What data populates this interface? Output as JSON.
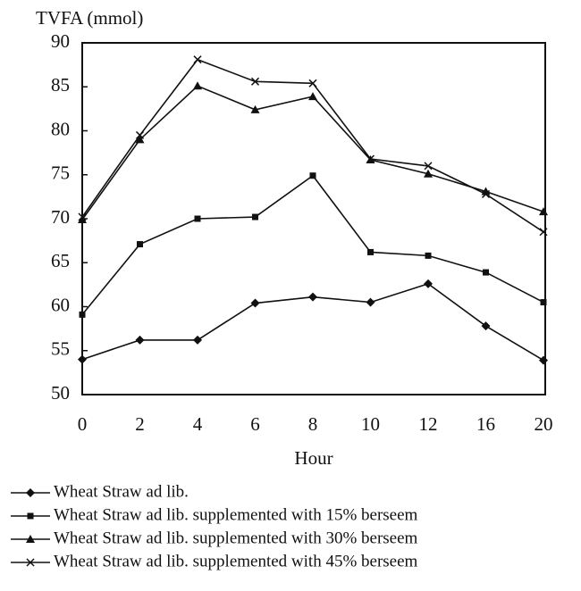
{
  "chart_data": {
    "type": "line",
    "ylabel": "TVFA  (mmol)",
    "xlabel": "Hour",
    "categories": [
      "0",
      "2",
      "4",
      "6",
      "8",
      "10",
      "12",
      "16",
      "20"
    ],
    "series": [
      {
        "name": "Wheat Straw ad lib.",
        "color": "#111111",
        "marker": "diamond",
        "values": [
          54,
          56.2,
          56.2,
          60.4,
          61.1,
          60.5,
          62.6,
          57.8,
          53.9
        ]
      },
      {
        "name": "Wheat Straw ad lib. supplemented with 15% berseem",
        "color": "#111111",
        "marker": "square",
        "values": [
          59.1,
          67.1,
          70,
          70.2,
          74.9,
          66.2,
          65.8,
          63.9,
          60.5
        ]
      },
      {
        "name": "Wheat Straw ad lib. supplemented with 30% berseem",
        "color": "#111111",
        "marker": "triangle",
        "values": [
          69.9,
          79,
          85.1,
          82.4,
          83.9,
          76.7,
          75.1,
          73.1,
          70.8
        ]
      },
      {
        "name": "Wheat Straw ad lib. supplemented with 45% berseem",
        "color": "#111111",
        "marker": "x",
        "values": [
          70.2,
          79.5,
          88.1,
          85.6,
          85.4,
          76.8,
          76,
          72.8,
          68.5
        ]
      }
    ],
    "ylim": [
      50,
      90
    ],
    "yticks": [
      50,
      55,
      60,
      65,
      70,
      75,
      80,
      85,
      90
    ],
    "grid": false
  }
}
